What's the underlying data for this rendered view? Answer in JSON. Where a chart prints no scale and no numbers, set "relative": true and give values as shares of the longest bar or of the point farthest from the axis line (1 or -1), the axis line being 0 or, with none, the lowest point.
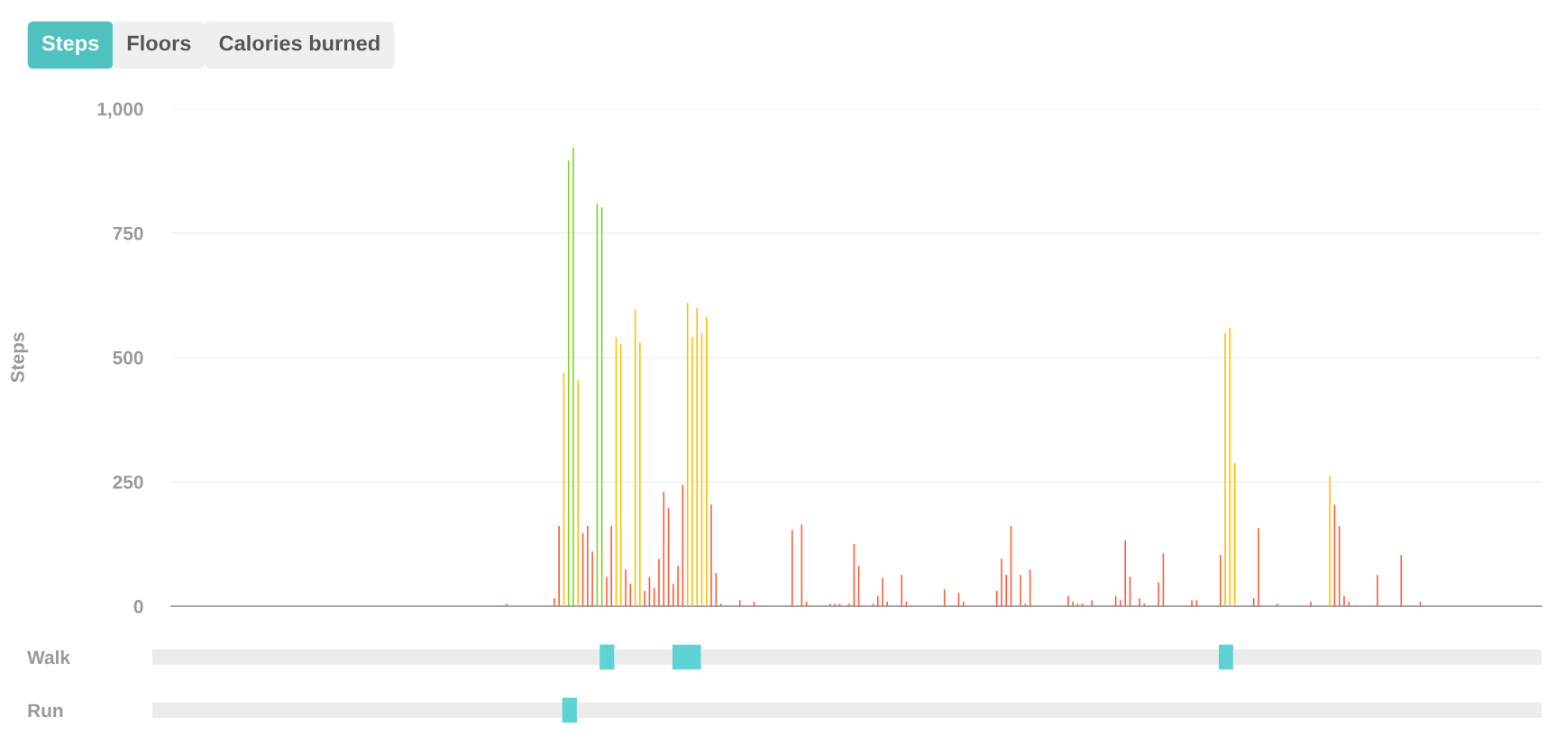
{
  "chart_data": [
    {
      "type": "bar",
      "ylabel": "Steps",
      "annotations": [
        "Steps",
        "Floors",
        "Calories burned"
      ],
      "categories": [
        null,
        null,
        null,
        null,
        null,
        null,
        null,
        null,
        null,
        null,
        null,
        null,
        null,
        null,
        null,
        null,
        null,
        null,
        null,
        null,
        null,
        null,
        null,
        null,
        null,
        null,
        null,
        null,
        null,
        null,
        null,
        null,
        null,
        null,
        null,
        null,
        null,
        null,
        null,
        null,
        null,
        null,
        null,
        null,
        null,
        null,
        null,
        null,
        null,
        null,
        null,
        null,
        null,
        null,
        null,
        null,
        null,
        null,
        null,
        null,
        null,
        null,
        null,
        null,
        null,
        null,
        null,
        null,
        null,
        null,
        null,
        null,
        null,
        null,
        null,
        null,
        null,
        null,
        null,
        null,
        null,
        null,
        null,
        null,
        null,
        null,
        null,
        null,
        null,
        null,
        null,
        null,
        null,
        null,
        null,
        null,
        null,
        null,
        null,
        null,
        null,
        null,
        null,
        null,
        null,
        null,
        null,
        null,
        null,
        null,
        null,
        null,
        null,
        null,
        null,
        null,
        null,
        null,
        null,
        null,
        null,
        null,
        null,
        null,
        null,
        null,
        null,
        null,
        null,
        null,
        null,
        null,
        null,
        null,
        null,
        null,
        null,
        null,
        null,
        null,
        null,
        null,
        null,
        null,
        null,
        null,
        null,
        null,
        null,
        null,
        null,
        null,
        null,
        null,
        null,
        null,
        null,
        null,
        null,
        null,
        null,
        null,
        null,
        null,
        null,
        null,
        null,
        null,
        null,
        null,
        null,
        null,
        null,
        null,
        null,
        null,
        null,
        null,
        null,
        null,
        null,
        null,
        null,
        null,
        null,
        null,
        null,
        null,
        null,
        null,
        null,
        null,
        null,
        null,
        null,
        null,
        null,
        null,
        null,
        null,
        null,
        null,
        null,
        null,
        null,
        null,
        null,
        null,
        null,
        null,
        null,
        null,
        null,
        null,
        null,
        null,
        null,
        null,
        null,
        null,
        null,
        null,
        null,
        null,
        null,
        null,
        null,
        null,
        null,
        null,
        null,
        null,
        null,
        null,
        null,
        null,
        null,
        null,
        null,
        null,
        null,
        null,
        null,
        null,
        null,
        null,
        null,
        null,
        null,
        null,
        null,
        null,
        null,
        null,
        null,
        null,
        null,
        null,
        null,
        null,
        null,
        null,
        null,
        null,
        null,
        null,
        null,
        null,
        null,
        null,
        null,
        null,
        null,
        null,
        null,
        null,
        null,
        null,
        null,
        null,
        null,
        null,
        null,
        null,
        null,
        null,
        null,
        null
      ],
      "values": [
        null,
        null,
        null,
        null,
        null,
        null,
        null,
        null,
        null,
        null,
        null,
        null,
        null,
        null,
        null,
        null,
        null,
        null,
        null,
        null,
        null,
        null,
        null,
        null,
        null,
        null,
        null,
        null,
        null,
        null,
        null,
        null,
        null,
        null,
        null,
        null,
        null,
        null,
        null,
        null,
        null,
        null,
        null,
        null,
        null,
        null,
        null,
        null,
        null,
        null,
        null,
        null,
        null,
        null,
        null,
        null,
        null,
        null,
        null,
        null,
        null,
        null,
        null,
        null,
        null,
        null,
        null,
        null,
        null,
        null,
        5,
        null,
        null,
        null,
        null,
        null,
        null,
        null,
        null,
        null,
        16,
        161,
        469,
        896,
        922,
        455,
        147,
        161,
        110,
        809,
        802,
        59,
        161,
        541,
        527,
        74,
        45,
        596,
        530,
        31,
        59,
        37,
        95,
        230,
        197,
        45,
        81,
        244,
        610,
        541,
        599,
        549,
        581,
        204,
        67,
        5,
        null,
        null,
        null,
        12,
        null,
        null,
        9,
        null,
        null,
        null,
        null,
        null,
        null,
        null,
        153,
        null,
        164,
        9,
        null,
        null,
        null,
        null,
        5,
        5,
        5,
        null,
        5,
        125,
        81,
        null,
        null,
        5,
        20,
        56,
        9,
        null,
        null,
        63,
        9,
        null,
        null,
        null,
        null,
        null,
        null,
        null,
        34,
        null,
        null,
        27,
        9,
        null,
        null,
        null,
        null,
        null,
        null,
        31,
        95,
        63,
        161,
        null,
        63,
        5,
        74,
        null,
        null,
        null,
        null,
        null,
        null,
        null,
        20,
        9,
        5,
        5,
        null,
        12,
        null,
        null,
        null,
        null,
        20,
        12,
        132,
        59,
        null,
        16,
        5,
        null,
        null,
        48,
        106,
        null,
        null,
        null,
        null,
        null,
        12,
        12,
        null,
        null,
        null,
        null,
        103,
        549,
        560,
        288,
        null,
        null,
        null,
        16,
        157,
        null,
        null,
        null,
        5,
        null,
        null,
        null,
        null,
        null,
        null,
        9,
        null,
        null,
        null,
        262,
        204,
        161,
        20,
        9,
        null,
        null,
        null,
        null,
        null,
        63,
        null,
        null,
        null,
        null,
        103,
        null,
        null,
        null,
        9,
        null,
        null,
        null,
        null,
        null,
        null,
        null,
        null,
        null,
        null,
        null,
        null,
        null,
        null,
        null,
        null,
        null,
        null,
        null,
        null,
        null,
        null,
        null,
        null,
        null
      ],
      "colors": [
        null,
        null,
        null,
        null,
        null,
        null,
        null,
        null,
        null,
        null,
        null,
        null,
        null,
        null,
        null,
        null,
        null,
        null,
        null,
        null,
        null,
        null,
        null,
        null,
        null,
        null,
        null,
        null,
        null,
        null,
        null,
        null,
        null,
        null,
        null,
        null,
        null,
        null,
        null,
        null,
        null,
        null,
        null,
        null,
        null,
        null,
        null,
        null,
        null,
        null,
        null,
        null,
        null,
        null,
        null,
        null,
        null,
        null,
        null,
        null,
        null,
        null,
        null,
        null,
        null,
        null,
        null,
        null,
        null,
        null,
        "#ff5a36",
        null,
        null,
        null,
        null,
        null,
        null,
        null,
        null,
        null,
        "#ff5a36",
        "#ff5a36",
        "#ffc000",
        "#7ed321",
        "#7ed321",
        "#ffc000",
        "#ff5a36",
        "#ff5a36",
        "#ff5a36",
        "#7ed321",
        "#7ed321",
        "#ff5a36",
        "#ff5a36",
        "#ffc000",
        "#ffc000",
        "#ff5a36",
        "#ff5a36",
        "#ffc000",
        "#ffc000",
        "#ff5a36",
        "#ff5a36",
        "#ff5a36",
        "#ff5a36",
        "#ff5a36",
        "#ff5a36",
        "#ff5a36",
        "#ff5a36",
        "#ff5a36",
        "#ffc000",
        "#ffc000",
        "#ffc000",
        "#ffc000",
        "#ffc000",
        "#ff5a36",
        "#ff5a36",
        "#ff5a36",
        null,
        null,
        null,
        "#ff5a36",
        null,
        null,
        "#ff5a36",
        null,
        null,
        null,
        null,
        null,
        null,
        null,
        "#ff5a36",
        null,
        "#ff5a36",
        "#ff5a36",
        null,
        null,
        null,
        null,
        "#ff5a36",
        "#ff5a36",
        "#ff5a36",
        null,
        "#ff5a36",
        "#ff5a36",
        "#ff5a36",
        null,
        null,
        "#ff5a36",
        "#ff5a36",
        "#ff5a36",
        "#ff5a36",
        null,
        null,
        "#ff5a36",
        "#ff5a36",
        null,
        null,
        null,
        null,
        null,
        null,
        null,
        "#ff5a36",
        null,
        null,
        "#ff5a36",
        "#ff5a36",
        null,
        null,
        null,
        null,
        null,
        null,
        "#ff5a36",
        "#ff5a36",
        "#ff5a36",
        "#ff5a36",
        null,
        "#ff5a36",
        "#ff5a36",
        "#ff5a36",
        null,
        null,
        null,
        null,
        null,
        null,
        null,
        "#ff5a36",
        "#ff5a36",
        "#ff5a36",
        "#ff5a36",
        null,
        "#ff5a36",
        null,
        null,
        null,
        null,
        "#ff5a36",
        "#ff5a36",
        "#ff5a36",
        "#ff5a36",
        null,
        "#ff5a36",
        "#ff5a36",
        null,
        null,
        "#ff5a36",
        "#ff5a36",
        null,
        null,
        null,
        null,
        null,
        "#ff5a36",
        "#ff5a36",
        null,
        null,
        null,
        null,
        "#ff5a36",
        "#ffc000",
        "#ffc000",
        "#ffc000",
        null,
        null,
        null,
        "#ff5a36",
        "#ff5a36",
        null,
        null,
        null,
        "#ff5a36",
        null,
        null,
        null,
        null,
        null,
        null,
        "#ff5a36",
        null,
        null,
        null,
        "#ffc000",
        "#ff5a36",
        "#ff5a36",
        "#ff5a36",
        "#ff5a36",
        null,
        null,
        null,
        null,
        null,
        "#ff5a36",
        null,
        null,
        null,
        null,
        "#ff5a36",
        null,
        null,
        null,
        "#ff5a36",
        null,
        null,
        null,
        null,
        null,
        null,
        null,
        null,
        null,
        null,
        null,
        null,
        null,
        null,
        null,
        null,
        null,
        null,
        null,
        null,
        null,
        null,
        null,
        null,
        null
      ],
      "ylim": [
        0,
        1000
      ],
      "yticks": [
        0,
        250,
        500,
        750,
        {
          "value": 1000,
          "label": "1,000"
        }
      ],
      "grid": "y",
      "tick_labels": "y"
    },
    {
      "type": "bar",
      "orientation": "horizontal",
      "stacked": true,
      "relative": true,
      "categories": [
        "Walk",
        "Run"
      ],
      "series": [
        {
          "color": "#ebebeb",
          "values": [
            0.322,
            0.295
          ]
        },
        {
          "color": "#5dd3d3",
          "values": [
            0.0106,
            0.0106
          ]
        },
        {
          "color": "#ebebeb",
          "values": [
            0.0418,
            0.6944
          ]
        },
        {
          "color": "#5dd3d3",
          "values": [
            0.0206,
            null
          ]
        },
        {
          "color": "#ebebeb",
          "values": [
            0.3727,
            null
          ]
        },
        {
          "color": "#5dd3d3",
          "values": [
            0.0103,
            null
          ]
        },
        {
          "color": "#ebebeb",
          "values": [
            0.222,
            null
          ]
        }
      ],
      "tick_labels": "y"
    }
  ]
}
